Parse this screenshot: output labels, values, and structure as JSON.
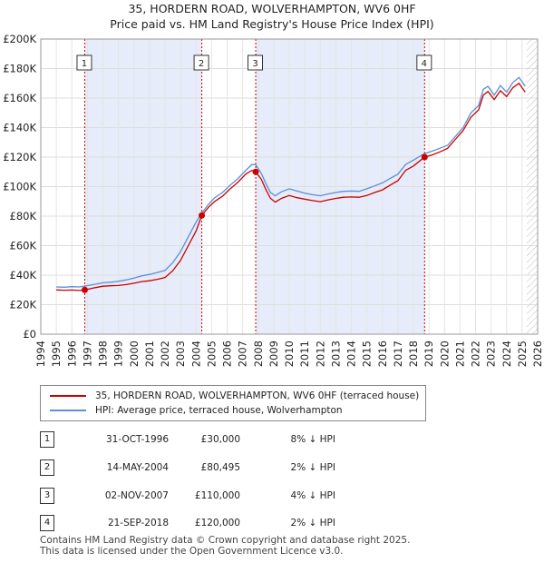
{
  "title_line1": "35, HORDERN ROAD, WOLVERHAMPTON, WV6 0HF",
  "title_line2": "Price paid vs. HM Land Registry's House Price Index (HPI)",
  "colors": {
    "property": "#cc0000",
    "hpi": "#5b8fd6",
    "band": "#dde6f7",
    "marker_line": "#cc0000"
  },
  "chart_data": {
    "type": "line",
    "xlim": [
      1994,
      2026
    ],
    "ylim": [
      0,
      200000
    ],
    "y_ticks": [
      {
        "value": 0,
        "label": "£0"
      },
      {
        "value": 20000,
        "label": "£20K"
      },
      {
        "value": 40000,
        "label": "£40K"
      },
      {
        "value": 60000,
        "label": "£60K"
      },
      {
        "value": 80000,
        "label": "£80K"
      },
      {
        "value": 100000,
        "label": "£100K"
      },
      {
        "value": 120000,
        "label": "£120K"
      },
      {
        "value": 140000,
        "label": "£140K"
      },
      {
        "value": 160000,
        "label": "£160K"
      },
      {
        "value": 180000,
        "label": "£180K"
      },
      {
        "value": 200000,
        "label": "£200K"
      }
    ],
    "x_ticks": [
      "1994",
      "1995",
      "1996",
      "1997",
      "1998",
      "1999",
      "2000",
      "2001",
      "2002",
      "2003",
      "2004",
      "2005",
      "2006",
      "2007",
      "2008",
      "2009",
      "2010",
      "2011",
      "2012",
      "2013",
      "2014",
      "2015",
      "2016",
      "2017",
      "2018",
      "2019",
      "2020",
      "2021",
      "2022",
      "2023",
      "2024",
      "2025",
      "2026"
    ],
    "shaded_bands": [
      [
        1996.83,
        2004.37
      ],
      [
        2007.84,
        2018.72
      ]
    ],
    "series": [
      {
        "name": "35, HORDERN ROAD, WOLVERHAMPTON, WV6 0HF (terraced house)",
        "color": "#cc0000",
        "x": [
          1995.0,
          1995.5,
          1996.0,
          1996.5,
          1996.83,
          1997.5,
          1998.0,
          1998.5,
          1999.0,
          1999.5,
          2000.0,
          2000.5,
          2001.0,
          2001.5,
          2002.0,
          2002.5,
          2003.0,
          2003.5,
          2004.0,
          2004.37,
          2004.8,
          2005.2,
          2005.7,
          2006.2,
          2006.7,
          2007.2,
          2007.6,
          2007.84,
          2008.2,
          2008.5,
          2008.8,
          2009.1,
          2009.5,
          2010.0,
          2010.5,
          2011.0,
          2011.5,
          2012.0,
          2012.5,
          2013.0,
          2013.5,
          2014.0,
          2014.5,
          2015.0,
          2015.5,
          2016.0,
          2016.5,
          2017.0,
          2017.5,
          2018.0,
          2018.72,
          2019.2,
          2019.7,
          2020.2,
          2020.7,
          2021.2,
          2021.7,
          2022.2,
          2022.5,
          2022.8,
          2023.2,
          2023.6,
          2024.0,
          2024.4,
          2024.8,
          2025.2
        ],
        "values": [
          30000,
          29800,
          29900,
          29600,
          30000,
          31500,
          32500,
          32800,
          33000,
          33600,
          34500,
          35600,
          36200,
          37200,
          38400,
          43000,
          50000,
          60000,
          70000,
          80495,
          86000,
          90000,
          93500,
          98500,
          103000,
          108500,
          111000,
          110000,
          105000,
          98000,
          92000,
          89500,
          92000,
          94000,
          92500,
          91500,
          90500,
          89800,
          91000,
          92000,
          92800,
          93000,
          92800,
          94000,
          96000,
          97800,
          101000,
          104000,
          111000,
          114000,
          120000,
          121500,
          123500,
          126000,
          132000,
          138000,
          147000,
          152000,
          162000,
          164500,
          159000,
          165000,
          161000,
          167000,
          170000,
          164000
        ]
      },
      {
        "name": "HPI: Average price, terraced house, Wolverhampton",
        "color": "#5b8fd6",
        "x": [
          1995.0,
          1995.5,
          1996.0,
          1996.5,
          1996.83,
          1997.5,
          1998.0,
          1998.5,
          1999.0,
          1999.5,
          2000.0,
          2000.5,
          2001.0,
          2001.5,
          2002.0,
          2002.5,
          2003.0,
          2003.5,
          2004.0,
          2004.37,
          2004.8,
          2005.2,
          2005.7,
          2006.2,
          2006.7,
          2007.2,
          2007.6,
          2007.84,
          2008.2,
          2008.5,
          2008.8,
          2009.1,
          2009.5,
          2010.0,
          2010.5,
          2011.0,
          2011.5,
          2012.0,
          2012.5,
          2013.0,
          2013.5,
          2014.0,
          2014.5,
          2015.0,
          2015.5,
          2016.0,
          2016.5,
          2017.0,
          2017.5,
          2018.0,
          2018.72,
          2019.2,
          2019.7,
          2020.2,
          2020.7,
          2021.2,
          2021.7,
          2022.2,
          2022.5,
          2022.8,
          2023.2,
          2023.6,
          2024.0,
          2024.4,
          2024.8,
          2025.2
        ],
        "values": [
          32000,
          31800,
          32200,
          32000,
          32600,
          33800,
          34800,
          35200,
          35800,
          36800,
          38000,
          39500,
          40500,
          41800,
          43200,
          48500,
          56000,
          66000,
          76000,
          82100,
          88000,
          92500,
          96000,
          101000,
          105500,
          111000,
          115000,
          114800,
          109000,
          102000,
          96000,
          93800,
          96500,
          98500,
          97000,
          95500,
          94500,
          93800,
          95000,
          96000,
          96800,
          97000,
          96800,
          98500,
          100500,
          102500,
          105500,
          108500,
          115000,
          118000,
          122400,
          124000,
          126000,
          128000,
          134000,
          140000,
          150000,
          155000,
          166000,
          168000,
          162000,
          168500,
          164000,
          170500,
          174000,
          168000
        ]
      }
    ],
    "sales": [
      {
        "num": "1",
        "x": 1996.83,
        "y": 30000
      },
      {
        "num": "2",
        "x": 2004.37,
        "y": 80495
      },
      {
        "num": "3",
        "x": 2007.84,
        "y": 110000
      },
      {
        "num": "4",
        "x": 2018.72,
        "y": 120000
      }
    ]
  },
  "legend": {
    "property_label": "35, HORDERN ROAD, WOLVERHAMPTON, WV6 0HF (terraced house)",
    "hpi_label": "HPI: Average price, terraced house, Wolverhampton"
  },
  "sales_table": [
    {
      "num": "1",
      "date": "31-OCT-1996",
      "price": "£30,000",
      "hpi": "8% ↓ HPI"
    },
    {
      "num": "2",
      "date": "14-MAY-2004",
      "price": "£80,495",
      "hpi": "2% ↓ HPI"
    },
    {
      "num": "3",
      "date": "02-NOV-2007",
      "price": "£110,000",
      "hpi": "4% ↓ HPI"
    },
    {
      "num": "4",
      "date": "21-SEP-2018",
      "price": "£120,000",
      "hpi": "2% ↓ HPI"
    }
  ],
  "footer": {
    "line1": "Contains HM Land Registry data © Crown copyright and database right 2025.",
    "line2": "This data is licensed under the Open Government Licence v3.0."
  }
}
